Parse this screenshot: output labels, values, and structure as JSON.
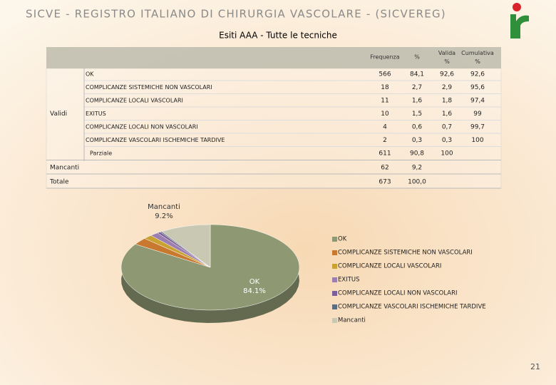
{
  "header": {
    "title": "SICVE - REGISTRO ITALIANO DI CHIRURGIA VASCOLARE - (SICVEREG)"
  },
  "table": {
    "title": "Esiti AAA - Tutte le tecniche",
    "columns": [
      "Frequenza",
      "%",
      "Valida %",
      "Cumulativa %"
    ],
    "sections": [
      {
        "label": "Validi",
        "rows": [
          {
            "label": "OK",
            "cells": [
              "566",
              "84,1",
              "92,6",
              "92,6"
            ]
          },
          {
            "label": "COMPLICANZE SISTEMICHE NON VASCOLARI",
            "cells": [
              "18",
              "2,7",
              "2,9",
              "95,6"
            ]
          },
          {
            "label": "COMPLICANZE LOCALI VASCOLARI",
            "cells": [
              "11",
              "1,6",
              "1,8",
              "97,4"
            ]
          },
          {
            "label": "EXITUS",
            "cells": [
              "10",
              "1,5",
              "1,6",
              "99"
            ]
          },
          {
            "label": "COMPLICANZE LOCALI NON VASCOLARI",
            "cells": [
              "4",
              "0,6",
              "0,7",
              "99,7"
            ]
          },
          {
            "label": "COMPLICANZE VASCOLARI ISCHEMICHE TARDIVE",
            "cells": [
              "2",
              "0,3",
              "0,3",
              "100"
            ]
          },
          {
            "label": "Parziale",
            "cells": [
              "611",
              "90,8",
              "100"
            ]
          }
        ]
      },
      {
        "label": "Mancanti",
        "cells": [
          "62",
          "9,2"
        ]
      },
      {
        "label": "Totale",
        "cells": [
          "673",
          "100,0"
        ]
      }
    ]
  },
  "chart_data": {
    "type": "pie",
    "categories": [
      "OK",
      "COMPLICANZE SISTEMICHE NON VASCOLARI",
      "COMPLICANZE LOCALI VASCOLARI",
      "EXITUS",
      "COMPLICANZE LOCALI NON VASCOLARI",
      "COMPLICANZE VASCOLARI ISCHEMICHE TARDIVE",
      "Mancanti"
    ],
    "values": [
      84.1,
      2.7,
      1.6,
      1.5,
      0.6,
      0.3,
      9.2
    ],
    "value_labels": [
      "84.1%",
      null,
      null,
      null,
      null,
      null,
      "9.2%"
    ],
    "colors": [
      "#8e9872",
      "#c8782f",
      "#c9a232",
      "#9b7fb0",
      "#7b5f98",
      "#5c6d80",
      "#c9c9b3"
    ],
    "legend": "right"
  },
  "footer": {
    "page": "21"
  }
}
